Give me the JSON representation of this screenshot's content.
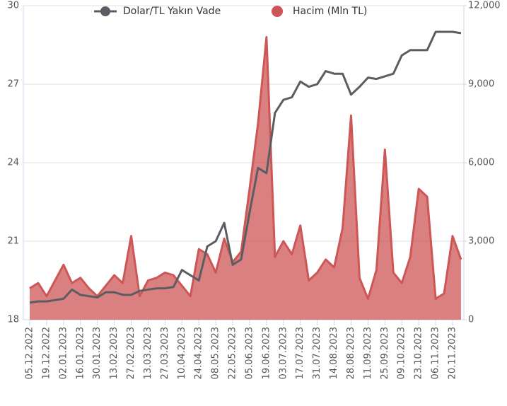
{
  "chart_data": {
    "type": "line+area",
    "categories": [
      "05.12.2022",
      null,
      "19.12.2022",
      null,
      "02.01.2023",
      null,
      "16.01.2023",
      null,
      "30.01.2023",
      null,
      "13.02.2023",
      null,
      "27.02.2023",
      null,
      "13.03.2023",
      null,
      "27.03.2023",
      null,
      "10.04.2023",
      null,
      "24.04.2023",
      null,
      "08.05.2023",
      null,
      "22.05.2023",
      null,
      "05.06.2023",
      null,
      "19.06.2023",
      null,
      "03.07.2023",
      null,
      "17.07.2023",
      null,
      "31.07.2023",
      null,
      "14.08.2023",
      null,
      "28.08.2023",
      null,
      "11.09.2023",
      null,
      "25.09.2023",
      null,
      "09.10.2023",
      null,
      "23.10.2023",
      null,
      "06.11.2023",
      null,
      "20.11.2023",
      null
    ],
    "series": [
      {
        "name": "Dolar/TL Yakın Vade",
        "type": "line",
        "color": "#5a5d61",
        "axis": "y",
        "values": [
          18.65,
          18.7,
          18.7,
          18.75,
          18.8,
          19.15,
          18.95,
          18.9,
          18.85,
          19.05,
          19.05,
          18.95,
          18.95,
          19.1,
          19.15,
          19.2,
          19.2,
          19.25,
          19.9,
          19.7,
          19.5,
          20.8,
          21.0,
          21.7,
          20.1,
          20.3,
          22.1,
          23.8,
          23.6,
          25.9,
          26.4,
          26.5,
          27.1,
          26.9,
          27.0,
          27.5,
          27.4,
          27.4,
          26.6,
          26.9,
          27.25,
          27.2,
          27.3,
          27.4,
          28.1,
          28.3,
          28.3,
          28.3,
          29.0,
          29.0,
          29.0,
          28.95
        ]
      },
      {
        "name": "Hacim (Mln TL)",
        "type": "area",
        "color": "#cd5656",
        "axis": "y2",
        "values": [
          1200,
          1400,
          900,
          1500,
          2100,
          1400,
          1600,
          1200,
          900,
          1300,
          1700,
          1400,
          3200,
          900,
          1500,
          1600,
          1800,
          1700,
          1300,
          900,
          2700,
          2500,
          1800,
          3100,
          2200,
          2600,
          5000,
          7500,
          10800,
          2400,
          3000,
          2500,
          3600,
          1500,
          1800,
          2300,
          2000,
          3500,
          7800,
          1600,
          800,
          1900,
          6500,
          1800,
          1400,
          2400,
          5000,
          4700,
          800,
          1000,
          3200,
          2300
        ]
      }
    ],
    "ylim": [
      18,
      30
    ],
    "yticks": [
      18,
      21,
      24,
      27,
      30
    ],
    "y2lim": [
      0,
      12000
    ],
    "y2ticks": [
      0,
      {
        "value": 3000,
        "label": "3,000"
      },
      {
        "value": 6000,
        "label": "6,000"
      },
      {
        "value": 9000,
        "label": "9,000"
      },
      {
        "value": 12000,
        "label": "12,000"
      }
    ],
    "grid": true
  }
}
